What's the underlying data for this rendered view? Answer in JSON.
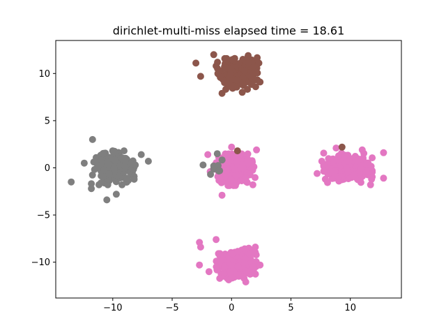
{
  "chart_data": {
    "type": "scatter",
    "title": "dirichlet-multi-miss elapsed time = 18.61",
    "xlabel": "",
    "ylabel": "",
    "xlim": [
      -14.8,
      14.3
    ],
    "ylim": [
      -13.8,
      13.5
    ],
    "xticks": [
      -10,
      -5,
      0,
      5,
      10
    ],
    "yticks": [
      -10,
      -5,
      0,
      5,
      10
    ],
    "xtick_labels": [
      "−10",
      "−5",
      "0",
      "5",
      "10"
    ],
    "ytick_labels": [
      "−10",
      "−5",
      "0",
      "5",
      "10"
    ],
    "grid": false,
    "legend": "none",
    "clusters": [
      {
        "color": "#8c564b",
        "center": [
          0.5,
          10.0
        ],
        "spread": [
          0.7,
          0.7
        ],
        "count": 260,
        "seed": 11,
        "outliers": [
          [
            -3.0,
            11.1
          ],
          [
            -2.6,
            9.7
          ],
          [
            -1.3,
            10.8
          ],
          [
            2.4,
            9.1
          ],
          [
            -0.8,
            7.9
          ],
          [
            2.3,
            11.1
          ],
          [
            -1.5,
            12.0
          ],
          [
            1.4,
            11.9
          ],
          [
            0.9,
            8.0
          ]
        ]
      },
      {
        "color": "#7f7f7f",
        "center": [
          -10.0,
          0.0
        ],
        "spread": [
          0.75,
          0.75
        ],
        "count": 260,
        "seed": 23,
        "outliers": [
          [
            -13.5,
            -1.5
          ],
          [
            -11.7,
            3.0
          ],
          [
            -10.5,
            -3.4
          ],
          [
            -7.0,
            0.7
          ],
          [
            -7.6,
            1.4
          ],
          [
            -11.8,
            -2.2
          ],
          [
            -8.1,
            0.3
          ],
          [
            -12.4,
            0.5
          ],
          [
            -9.7,
            -2.8
          ],
          [
            -11.0,
            -1.6
          ]
        ]
      },
      {
        "color": "#e377c2",
        "center": [
          0.3,
          -0.2
        ],
        "spread": [
          0.7,
          0.7
        ],
        "count": 260,
        "seed": 37,
        "outliers": [
          [
            -2.0,
            1.4
          ],
          [
            -0.8,
            -2.9
          ],
          [
            2.1,
            1.9
          ],
          [
            0.0,
            2.2
          ],
          [
            -1.8,
            -0.4
          ],
          [
            1.8,
            -1.8
          ]
        ]
      },
      {
        "color": "#e377c2",
        "center": [
          9.8,
          0.0
        ],
        "spread": [
          0.85,
          0.65
        ],
        "count": 280,
        "seed": 41,
        "outliers": [
          [
            7.2,
            -0.6
          ],
          [
            12.8,
            1.6
          ],
          [
            12.8,
            -1.1
          ],
          [
            7.6,
            0.7
          ],
          [
            11.7,
            -1.8
          ],
          [
            8.8,
            2.1
          ],
          [
            11.0,
            1.9
          ],
          [
            7.9,
            -1.2
          ]
        ]
      },
      {
        "color": "#e377c2",
        "center": [
          0.4,
          -10.2
        ],
        "spread": [
          0.7,
          0.7
        ],
        "count": 260,
        "seed": 53,
        "outliers": [
          [
            -2.7,
            -10.3
          ],
          [
            -2.6,
            -8.4
          ],
          [
            -2.7,
            -7.9
          ],
          [
            2.4,
            -10.3
          ],
          [
            -1.3,
            -7.6
          ],
          [
            2.0,
            -8.4
          ],
          [
            1.2,
            -12.1
          ],
          [
            -1.9,
            -11.0
          ],
          [
            1.7,
            -11.2
          ]
        ]
      },
      {
        "color": "#7f7f7f",
        "center": [
          -1.4,
          0.6
        ],
        "spread": [
          0.5,
          0.6
        ],
        "count": 8,
        "seed": 67,
        "outliers": [
          [
            -2.4,
            0.3
          ],
          [
            -1.2,
            1.5
          ],
          [
            -1.5,
            0.2
          ]
        ]
      },
      {
        "color": "#8c564b",
        "center": [
          9.3,
          2.2
        ],
        "spread": [
          0.01,
          0.01
        ],
        "count": 1,
        "seed": 71,
        "outliers": [
          [
            0.5,
            1.8
          ]
        ]
      }
    ]
  }
}
